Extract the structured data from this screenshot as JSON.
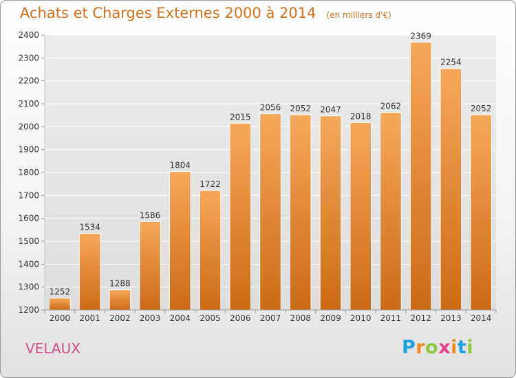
{
  "title": "Achats et Charges Externes 2000 à 2014",
  "unit": "(en milliers d'€)",
  "city": "VELAUX",
  "logo": {
    "letters": [
      "P",
      "r",
      "o",
      "x",
      "i",
      "t",
      "i"
    ],
    "colors": [
      "#1ea0dc",
      "#f08a1c",
      "#8dc63f",
      "#e83e8c",
      "#f08a1c",
      "#1ea0dc",
      "#8dc63f"
    ]
  },
  "colors": {
    "bar_top": "#f6a85a",
    "bar_bottom": "#cc6a14",
    "title": "#d4711c",
    "city": "#d24f8a"
  },
  "chart_data": {
    "type": "bar",
    "categories": [
      "2000",
      "2001",
      "2002",
      "2003",
      "2004",
      "2005",
      "2006",
      "2007",
      "2008",
      "2009",
      "2010",
      "2011",
      "2012",
      "2013",
      "2014"
    ],
    "values": [
      1252,
      1534,
      1288,
      1586,
      1804,
      1722,
      2015,
      2056,
      2052,
      2047,
      2018,
      2062,
      2369,
      2254,
      2052
    ],
    "title": "Achats et Charges Externes 2000 à 2014",
    "ylim": [
      1200,
      2400
    ],
    "yticks": [
      1200,
      1300,
      1400,
      1500,
      1600,
      1700,
      1800,
      1900,
      2000,
      2100,
      2200,
      2300,
      2400
    ],
    "grid": true
  }
}
